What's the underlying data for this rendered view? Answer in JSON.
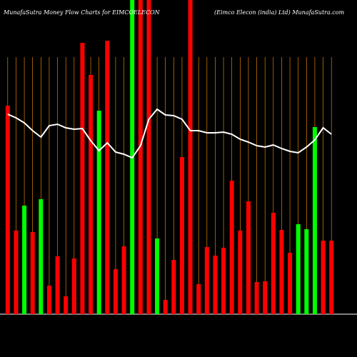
{
  "chart_data": {
    "type": "bar",
    "title": "MunafaSutra  Money Flow  Charts for EIMCOELECON",
    "subtitle": "(Eimco  Elecon  (india) Ltd) MunafaSutra.com",
    "categories": [
      null,
      null,
      null,
      null,
      null,
      null,
      null,
      null,
      null,
      null,
      null,
      null,
      null,
      null,
      null,
      null,
      null,
      null,
      null,
      null,
      null,
      null,
      null,
      null,
      null,
      null,
      null,
      null,
      null,
      null,
      null,
      null,
      null,
      null,
      null,
      null,
      null,
      null,
      null,
      null
    ],
    "series": [
      {
        "type": "bar",
        "colors": [
          "#ff0000",
          "#ff0000",
          "#00ff00",
          "#ff0000",
          "#00ff00",
          "#ff0000",
          "#ff0000",
          "#ff0000",
          "#ff0000",
          "#ff0000",
          "#ff0000",
          "#00ff00",
          "#ff0000",
          "#ff0000",
          "#ff0000",
          "#00ff00",
          "#ff0000",
          "#ff0000",
          "#00ff00",
          "#ff0000",
          "#ff0000",
          "#ff0000",
          "#ff0000",
          "#ff0000",
          "#ff0000",
          "#ff0000",
          "#ff0000",
          "#ff0000",
          "#ff0000",
          "#ff0000",
          "#ff0000",
          "#ff0000",
          "#ff0000",
          "#ff0000",
          "#ff0000",
          "#00ff00",
          "#00ff00",
          "#00ff00",
          "#ff0000",
          "#ff0000"
        ],
        "values": [
          292,
          117,
          152,
          115,
          161,
          40,
          81,
          25,
          78,
          380,
          335,
          285,
          383,
          63,
          95,
          440,
          440,
          440,
          106,
          20,
          76,
          220,
          440,
          42,
          94,
          82,
          93,
          187,
          117,
          158,
          45,
          46,
          142,
          118,
          86,
          126,
          119,
          262,
          103,
          103
        ]
      },
      {
        "type": "line",
        "color": "#ffffff",
        "values": [
          280,
          275,
          268,
          257,
          248,
          264,
          266,
          261,
          259,
          260,
          243,
          229,
          240,
          227,
          224,
          219,
          236,
          273,
          287,
          279,
          278,
          273,
          257,
          257,
          254,
          254,
          255,
          252,
          245,
          241,
          236,
          234,
          237,
          232,
          228,
          226,
          234,
          244,
          261,
          252
        ]
      }
    ],
    "ylim": [
      0,
      440
    ],
    "grid_color": "#ff9900"
  }
}
